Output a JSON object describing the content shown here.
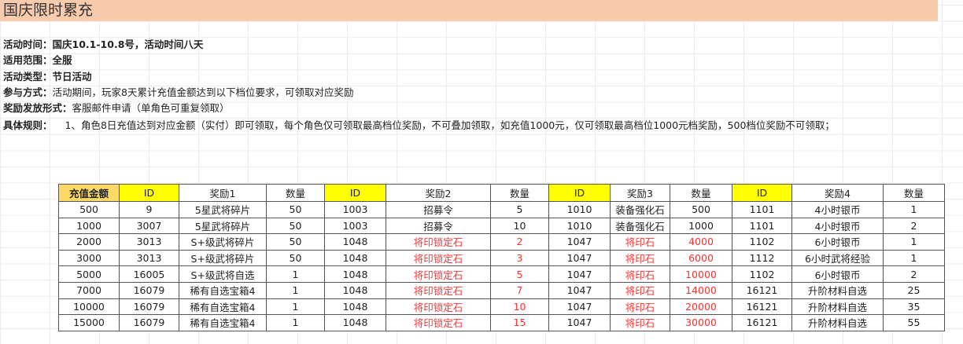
{
  "title": "国庆限时累充",
  "info": [
    {
      "label": "活动时间：",
      "value": "国庆10.1-10.8号，活动时间八天",
      "bold": true
    },
    {
      "label": "适用范围：",
      "value": "全服",
      "bold": true
    },
    {
      "label": "活动类型：",
      "value": "节日活动",
      "bold": true
    },
    {
      "label": "参与方式：",
      "value": "活动期间，玩家8天累计充值金额达到以下档位要求，可领取对应奖励",
      "bold": false
    },
    {
      "label": "奖励发放形式：",
      "value": "客服邮件申请（单角色可重复领取）",
      "bold": false
    },
    {
      "label": "具体规则：",
      "value": "1、角色8日充值达到对应金额（实付）即可领取，每个角色仅可领取最高档位奖励，不可叠加领取，如充值1000元，仅可领取最高档位1000元档奖励，500档位奖励不可领取；",
      "bold": false
    }
  ],
  "table": {
    "headers": [
      "充值金额",
      "ID",
      "奖励1",
      "数量",
      "ID",
      "奖励2",
      "数量",
      "ID",
      "奖励3",
      "数量",
      "ID",
      "奖励4",
      "数量"
    ],
    "rows": [
      [
        "500",
        "9",
        "5星武将碎片",
        "50",
        "1003",
        "招募令",
        "5",
        "1010",
        "装备强化石",
        "500",
        "1101",
        "4小时银币",
        "1"
      ],
      [
        "1000",
        "3007",
        "5星武将碎片",
        "50",
        "1003",
        "招募令",
        "10",
        "1010",
        "装备强化石",
        "1000",
        "1101",
        "4小时银币",
        "2"
      ],
      [
        "2000",
        "3013",
        "S+级武将碎片",
        "50",
        "1048",
        "将印锁定石",
        "2",
        "1047",
        "将印石",
        "4000",
        "1102",
        "6小时银币",
        "1"
      ],
      [
        "3000",
        "3013",
        "S+级武将碎片",
        "50",
        "1048",
        "将印锁定石",
        "3",
        "1047",
        "将印石",
        "6000",
        "1112",
        "6小时武将经验",
        "1"
      ],
      [
        "5000",
        "16005",
        "S+级武将自选",
        "1",
        "1048",
        "将印锁定石",
        "5",
        "1047",
        "将印石",
        "10000",
        "1102",
        "6小时银币",
        "2"
      ],
      [
        "7000",
        "16079",
        "稀有自选宝箱4",
        "1",
        "1048",
        "将印锁定石",
        "7",
        "1047",
        "将印石",
        "14000",
        "16121",
        "升阶材料自选",
        "25"
      ],
      [
        "10000",
        "16079",
        "稀有自选宝箱4",
        "1",
        "1048",
        "将印锁定石",
        "10",
        "1047",
        "将印石",
        "20000",
        "16121",
        "升阶材料自选",
        "35"
      ],
      [
        "15000",
        "16079",
        "稀有自选宝箱4",
        "1",
        "1048",
        "将印锁定石",
        "15",
        "1047",
        "将印石",
        "30000",
        "16121",
        "升阶材料自选",
        "55"
      ]
    ]
  },
  "colors": {
    "title_bg": "#f8cbad",
    "amount_header_bg": "#ffd966",
    "id_header_bg": "#ffff00",
    "highlight_text": "#ff3030"
  }
}
